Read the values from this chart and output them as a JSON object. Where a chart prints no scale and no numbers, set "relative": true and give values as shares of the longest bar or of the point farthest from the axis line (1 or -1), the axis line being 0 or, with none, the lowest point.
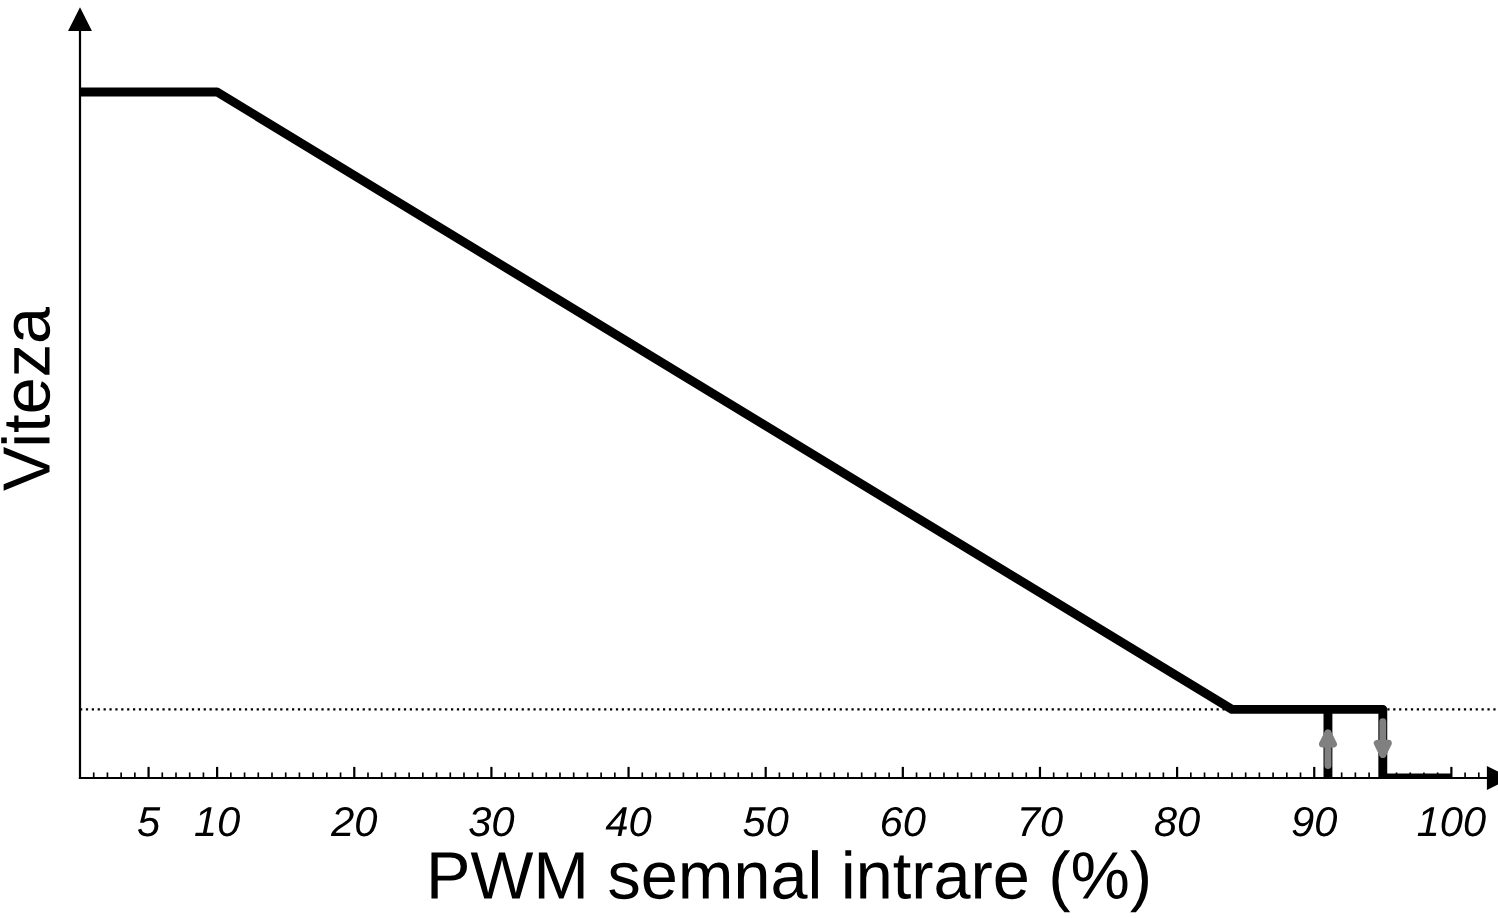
{
  "chart_data": {
    "type": "line",
    "relative": true,
    "xlabel": "PWM semnal intrare (%)",
    "ylabel": "Viteza",
    "xlim": [
      0,
      103.4
    ],
    "xticks": [
      5,
      10,
      20,
      30,
      40,
      50,
      60,
      70,
      80,
      90,
      100
    ],
    "tick_labels": "x",
    "grid": false,
    "legend": false,
    "marker": "none",
    "line_style": "solid",
    "series": [
      {
        "color": "#000000",
        "x": [
          0,
          10,
          84,
          95,
          95,
          100
        ],
        "values": [
          1,
          1,
          0.1,
          0.1,
          0,
          0
        ]
      },
      {
        "color": "#000000",
        "x": [
          91,
          91
        ],
        "values": [
          0.1,
          0
        ]
      }
    ],
    "ref_lines": [
      {
        "axis": "y",
        "value": 0.1,
        "label": null,
        "color": "#000000",
        "line_style": "dotted"
      }
    ]
  }
}
